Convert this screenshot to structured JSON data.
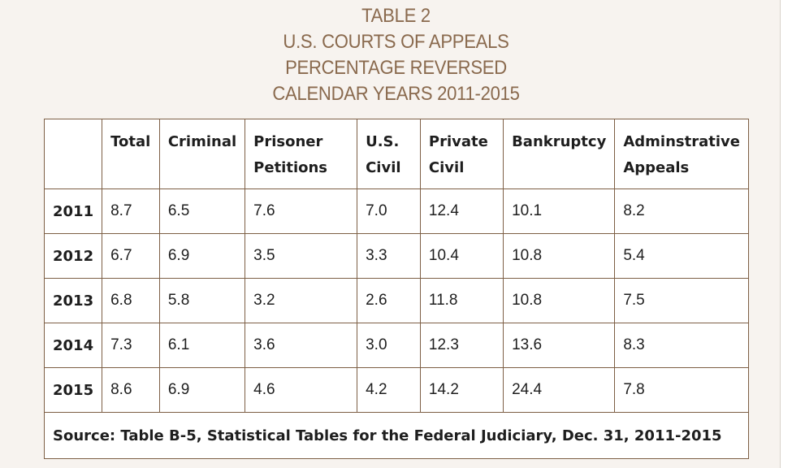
{
  "title_lines": [
    "TABLE 2",
    "U.S. COURTS OF APPEALS",
    "PERCENTAGE REVERSED",
    "CALENDAR YEARS 2011-2015"
  ],
  "colors": {
    "title": "#8a6a4e",
    "border": "#7d5f45",
    "background": "#f7f3ef",
    "table_background": "#ffffff",
    "text": "#1e1e1e"
  },
  "chart_data": {
    "type": "table",
    "columns": [
      "",
      "Total",
      "Criminal",
      "Prisoner Petitions",
      "U.S. Civil",
      "Private Civil",
      "Bankruptcy",
      "Adminstrative Appeals"
    ],
    "rows": [
      {
        "year": "2011",
        "values": [
          "8.7",
          "6.5",
          "7.6",
          "7.0",
          "12.4",
          "10.1",
          "8.2"
        ]
      },
      {
        "year": "2012",
        "values": [
          "6.7",
          "6.9",
          "3.5",
          "3.3",
          "10.4",
          "10.8",
          "5.4"
        ]
      },
      {
        "year": "2013",
        "values": [
          "6.8",
          "5.8",
          "3.2",
          "2.6",
          "11.8",
          "10.8",
          "7.5"
        ]
      },
      {
        "year": "2014",
        "values": [
          "7.3",
          "6.1",
          "3.6",
          "3.0",
          "12.3",
          "13.6",
          "8.3"
        ]
      },
      {
        "year": "2015",
        "values": [
          "8.6",
          "6.9",
          "4.6",
          "4.2",
          "14.2",
          "24.4",
          "7.8"
        ]
      }
    ],
    "source": "Source: Table B-5, Statistical Tables for the Federal Judiciary, Dec. 31, 2011-2015"
  }
}
